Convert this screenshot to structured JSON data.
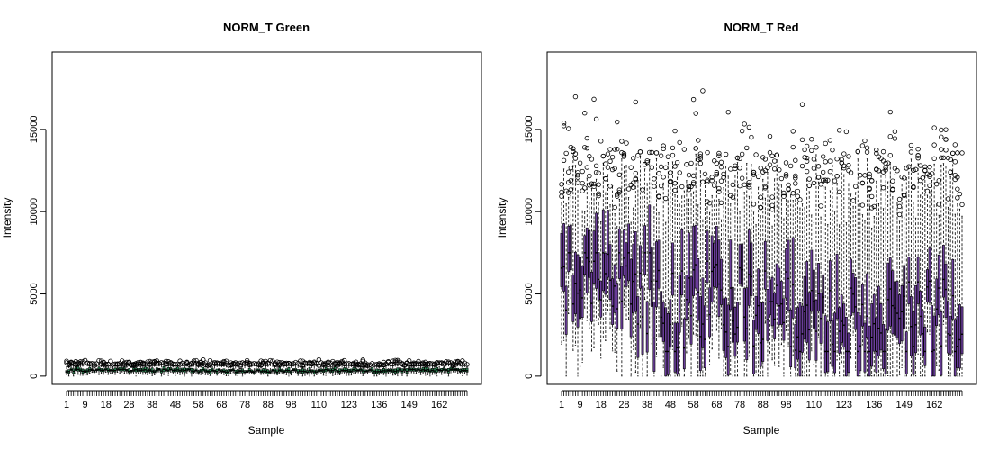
{
  "chart_data": [
    {
      "type": "boxplot",
      "title": "NORM_T Green",
      "xlabel": "Sample",
      "ylabel": "Intensity",
      "n_samples": 174,
      "ylim": [
        -500,
        19700
      ],
      "yticks": [
        0,
        5000,
        10000,
        15000
      ],
      "ytick_labels": [
        "0",
        "5000",
        "10000",
        "15000"
      ],
      "xtick_labels": [
        "1",
        "9",
        "18",
        "28",
        "38",
        "48",
        "58",
        "68",
        "78",
        "88",
        "98",
        "110",
        "123",
        "136",
        "149",
        "162"
      ],
      "xtick_positions": [
        1,
        9,
        18,
        28,
        38,
        48,
        58,
        68,
        78,
        88,
        98,
        110,
        123,
        136,
        149,
        162
      ],
      "box_fill": "#2e8b57",
      "median_range": [
        250,
        420
      ],
      "q_spread": [
        60,
        140
      ],
      "whisker_max": [
        560,
        760
      ],
      "outlier_max": [
        700,
        1000
      ],
      "sample_indices": [
        1,
        9,
        18,
        28,
        38,
        48,
        58,
        68,
        78,
        88,
        98,
        110,
        123,
        136,
        149,
        162,
        174
      ],
      "sample_medians": [
        340,
        360,
        380,
        360,
        340,
        350,
        330,
        320,
        310,
        300,
        310,
        320,
        330,
        340,
        360,
        380,
        360
      ]
    },
    {
      "type": "boxplot",
      "title": "NORM_T Red",
      "xlabel": "Sample",
      "ylabel": "Intensity",
      "n_samples": 174,
      "ylim": [
        -500,
        19700
      ],
      "yticks": [
        0,
        5000,
        10000,
        15000
      ],
      "ytick_labels": [
        "0",
        "5000",
        "10000",
        "15000"
      ],
      "xtick_labels": [
        "1",
        "9",
        "18",
        "28",
        "38",
        "48",
        "58",
        "68",
        "78",
        "88",
        "98",
        "110",
        "123",
        "136",
        "149",
        "162"
      ],
      "xtick_positions": [
        1,
        9,
        18,
        28,
        38,
        48,
        58,
        68,
        78,
        88,
        98,
        110,
        123,
        136,
        149,
        162
      ],
      "box_fill": "#6a3d9a",
      "median_range": [
        1500,
        7500
      ],
      "q_spread": [
        1200,
        2200
      ],
      "whisker_max": [
        9000,
        13500
      ],
      "outlier_max": [
        11000,
        18900
      ],
      "sample_indices": [
        1,
        9,
        18,
        28,
        38,
        48,
        58,
        68,
        78,
        88,
        98,
        110,
        123,
        136,
        149,
        162,
        174
      ],
      "sample_medians": [
        6500,
        5800,
        6200,
        6000,
        5200,
        3500,
        5000,
        4800,
        4200,
        3800,
        4500,
        3200,
        3000,
        2800,
        3200,
        3500,
        3000
      ]
    }
  ]
}
